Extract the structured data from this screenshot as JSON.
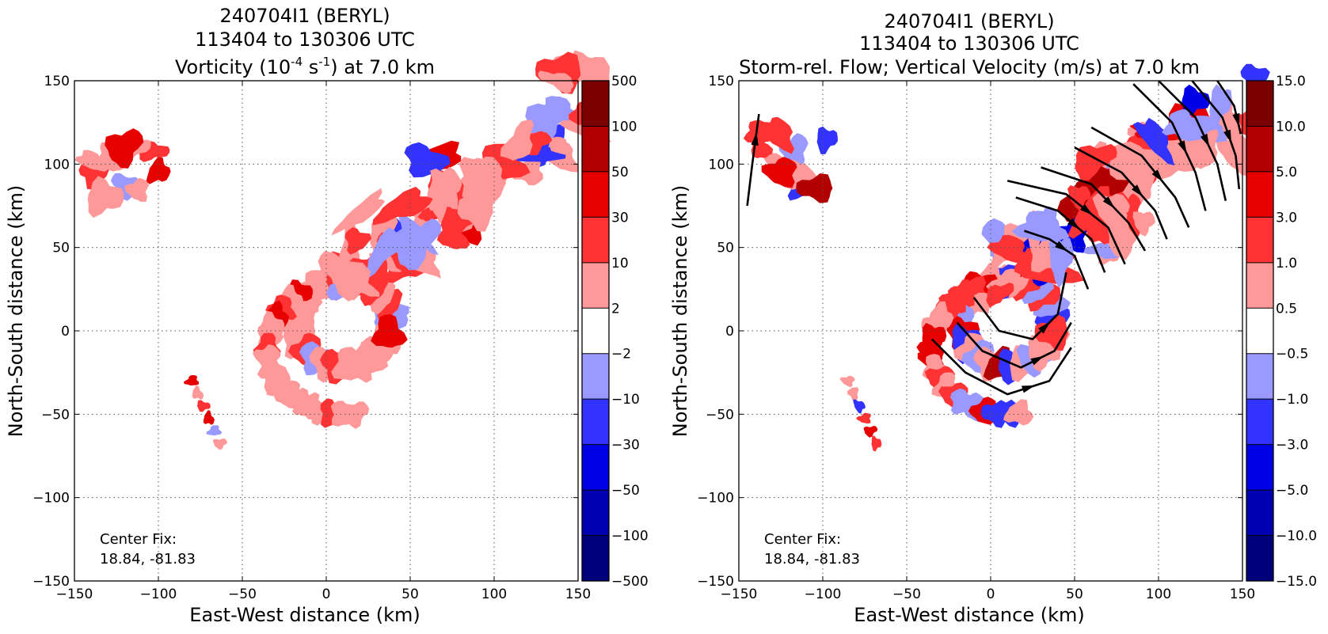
{
  "chart_data": [
    {
      "type": "heatmap",
      "panel": "left",
      "title": {
        "line1": "240704I1 (BERYL)",
        "line2": "113404 to 130306 UTC",
        "line3_pre": "Vorticity (10",
        "line3_sup1": "-4",
        "line3_mid": " s",
        "line3_sup2": "-1",
        "line3_post": ") at 7.0 km"
      },
      "xlabel": "East-West distance (km)",
      "ylabel": "North-South distance (km)",
      "xlim": [
        -150,
        150
      ],
      "ylim": [
        -150,
        150
      ],
      "x_ticks": [
        "−150",
        "−100",
        "−50",
        "0",
        "50",
        "100",
        "150"
      ],
      "y_ticks": [
        "150",
        "100",
        "50",
        "0",
        "−50",
        "−100",
        "−150"
      ],
      "grid": true,
      "annotation": {
        "line1": "Center Fix:",
        "line2": "18.84, -81.83"
      },
      "colorbar": {
        "labels": [
          "500",
          "100",
          "50",
          "30",
          "10",
          "2",
          "−2",
          "−10",
          "−30",
          "−50",
          "−100",
          "−500"
        ],
        "colors": [
          "#7a0000",
          "#b20000",
          "#e60000",
          "#ff3333",
          "#ff9999",
          "#ffffff",
          "#9999ff",
          "#3333ff",
          "#0000e6",
          "#0000b2",
          "#00007a"
        ]
      },
      "streamlines": []
    },
    {
      "type": "heatmap",
      "panel": "right",
      "title": {
        "line1": "240704I1 (BERYL)",
        "line2": "113404 to 130306 UTC",
        "line3": "Storm-rel. Flow; Vertical Velocity (m/s) at 7.0 km"
      },
      "xlabel": "East-West distance (km)",
      "ylabel": "North-South distance (km)",
      "xlim": [
        -150,
        150
      ],
      "ylim": [
        -150,
        150
      ],
      "x_ticks": [
        "−150",
        "−100",
        "−50",
        "0",
        "50",
        "100",
        "150"
      ],
      "y_ticks": [
        "150",
        "100",
        "50",
        "0",
        "−50",
        "−100",
        "−150"
      ],
      "grid": true,
      "annotation": {
        "line1": "Center Fix:",
        "line2": "18.84, -81.83"
      },
      "colorbar": {
        "labels": [
          "15.0",
          "10.0",
          "5.0",
          "3.0",
          "1.0",
          "0.5",
          "−0.5",
          "−1.0",
          "−3.0",
          "−5.0",
          "−10.0",
          "−15.0"
        ],
        "colors": [
          "#7a0000",
          "#b20000",
          "#e60000",
          "#ff3333",
          "#ff9999",
          "#ffffff",
          "#9999ff",
          "#3333ff",
          "#0000e6",
          "#0000b2",
          "#00007a"
        ]
      },
      "streamlines": [
        [
          [
            -145,
            75
          ],
          [
            -142,
            100
          ],
          [
            -138,
            130
          ]
        ],
        [
          [
            -35,
            -5
          ],
          [
            -15,
            -25
          ],
          [
            10,
            -38
          ],
          [
            35,
            -30
          ],
          [
            48,
            -10
          ]
        ],
        [
          [
            -20,
            5
          ],
          [
            -5,
            -12
          ],
          [
            18,
            -22
          ],
          [
            38,
            -12
          ],
          [
            48,
            5
          ]
        ],
        [
          [
            -10,
            20
          ],
          [
            5,
            0
          ],
          [
            25,
            -5
          ],
          [
            40,
            10
          ],
          [
            45,
            35
          ]
        ],
        [
          [
            20,
            60
          ],
          [
            35,
            55
          ],
          [
            50,
            45
          ],
          [
            58,
            25
          ]
        ],
        [
          [
            15,
            80
          ],
          [
            40,
            72
          ],
          [
            60,
            55
          ],
          [
            68,
            35
          ]
        ],
        [
          [
            10,
            90
          ],
          [
            45,
            82
          ],
          [
            70,
            62
          ],
          [
            80,
            40
          ]
        ],
        [
          [
            30,
            98
          ],
          [
            60,
            88
          ],
          [
            82,
            65
          ],
          [
            92,
            48
          ]
        ],
        [
          [
            50,
            110
          ],
          [
            78,
            95
          ],
          [
            98,
            72
          ],
          [
            105,
            55
          ]
        ],
        [
          [
            60,
            122
          ],
          [
            90,
            105
          ],
          [
            110,
            80
          ],
          [
            118,
            62
          ]
        ],
        [
          [
            85,
            148
          ],
          [
            108,
            125
          ],
          [
            122,
            95
          ],
          [
            128,
            72
          ]
        ],
        [
          [
            100,
            150
          ],
          [
            122,
            128
          ],
          [
            135,
            100
          ],
          [
            140,
            78
          ]
        ],
        [
          [
            120,
            150
          ],
          [
            138,
            128
          ],
          [
            146,
            105
          ],
          [
            148,
            85
          ]
        ],
        [
          [
            135,
            150
          ],
          [
            145,
            135
          ],
          [
            149,
            118
          ]
        ]
      ]
    }
  ]
}
